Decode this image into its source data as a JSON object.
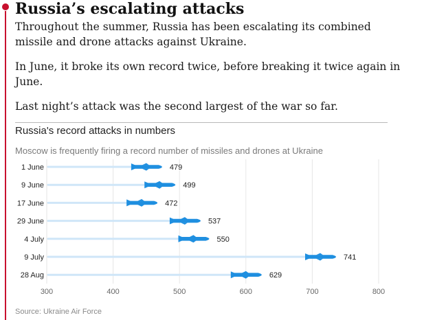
{
  "article": {
    "headline": "Russia’s escalating attacks",
    "paragraphs": [
      "Throughout the summer, Russia has been escalating its combined missile and drone attacks against Ukraine.",
      "In June, it broke its own record twice, before breaking it twice again in June.",
      "Last night’s attack was the second largest of the war so far."
    ]
  },
  "colors": {
    "accent": "#c8102e",
    "missile": "#1f8fe0",
    "trail": "#cfe6f8",
    "grid": "#e6e6e6"
  },
  "chart_data": {
    "type": "bar",
    "title": "Russia's record attacks in numbers",
    "subtitle": "Moscow is frequently firing a record number of missiles and drones at Ukraine",
    "source": "Source: Ukraine Air Force",
    "categories": [
      "1 June",
      "9 June",
      "17 June",
      "29 June",
      "4 July",
      "9 July",
      "28 Aug"
    ],
    "values": [
      479,
      499,
      472,
      537,
      550,
      741,
      629
    ],
    "xlim": [
      300,
      800
    ],
    "xticks": [
      300,
      400,
      500,
      600,
      700,
      800
    ],
    "grid": true,
    "orientation": "horizontal"
  }
}
